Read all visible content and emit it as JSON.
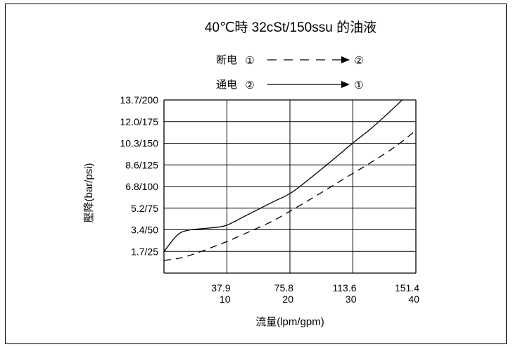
{
  "chart_data": {
    "type": "line",
    "title": "40℃時 32cSt/150ssu 的油液",
    "xlabel": "流量(lpm/gpm)",
    "ylabel": "壓降(bar/psi)",
    "x_ticks": [
      {
        "top": "",
        "bottom": ""
      },
      {
        "top": "37.9",
        "bottom": "10"
      },
      {
        "top": "75.8",
        "bottom": "20"
      },
      {
        "top": "113.6",
        "bottom": "30"
      },
      {
        "top": "151.4",
        "bottom": "40"
      }
    ],
    "y_ticks": [
      "",
      "1.7/25",
      "3.4/50",
      "5.2/75",
      "6.8/100",
      "8.6/125",
      "10.3/150",
      "12.0/175",
      "13.7/200"
    ],
    "xlim": [
      0,
      151.4
    ],
    "ylim": [
      0,
      13.7
    ],
    "grid": true,
    "legend": {
      "position": "top-center",
      "entries": [
        {
          "label": "断电",
          "from": "①",
          "to": "②",
          "style": "dashed"
        },
        {
          "label": "通电",
          "from": "②",
          "to": "①",
          "style": "solid"
        }
      ]
    },
    "series": [
      {
        "style": "solid",
        "x": [
          0,
          8,
          15,
          30,
          37.9,
          50,
          65,
          75.8,
          85,
          100,
          113.6,
          125,
          140,
          151.4
        ],
        "y": [
          1.7,
          3.0,
          3.4,
          3.6,
          3.8,
          4.6,
          5.6,
          6.3,
          7.2,
          8.8,
          10.3,
          11.5,
          13.3,
          14.8
        ]
      },
      {
        "style": "dashed",
        "x": [
          0,
          10,
          20,
          30,
          37.9,
          50,
          65,
          75.8,
          90,
          100,
          113.6,
          125,
          140,
          151.4
        ],
        "y": [
          1.0,
          1.2,
          1.6,
          2.1,
          2.5,
          3.2,
          4.1,
          4.9,
          6.0,
          6.8,
          7.9,
          8.8,
          10.1,
          11.3
        ]
      }
    ]
  }
}
